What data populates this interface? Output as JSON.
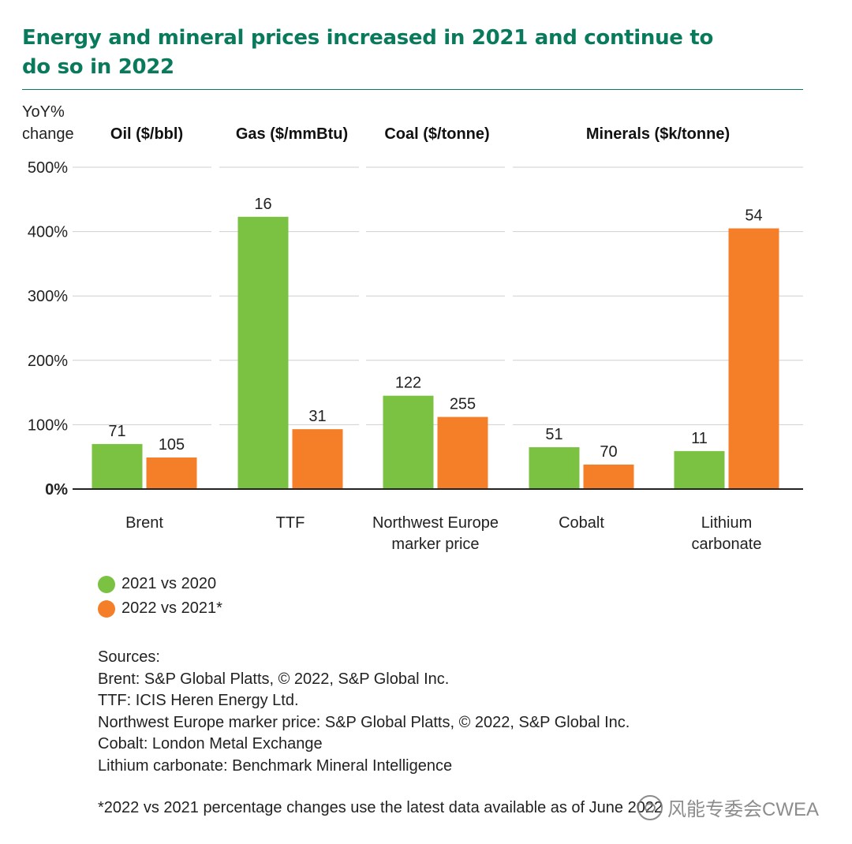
{
  "title": "Energy and mineral prices increased in 2021 and continue to do so in 2022",
  "colors": {
    "series1": "#7cc242",
    "series2": "#f57f29",
    "title": "#0a7a5c",
    "grid": "#cfcfcf",
    "axis": "#222222"
  },
  "chart_data": {
    "type": "bar",
    "ylabel": "YoY% change",
    "ylim": [
      0,
      500
    ],
    "yticks": [
      "0%",
      "100%",
      "200%",
      "300%",
      "400%",
      "500%"
    ],
    "groups": [
      "Oil ($/bbl)",
      "Gas ($/mmBtu)",
      "Coal ($/tonne)",
      "Minerals ($k/tonne)"
    ],
    "group_spans": [
      [
        0
      ],
      [
        1
      ],
      [
        2
      ],
      [
        3,
        4
      ]
    ],
    "categories": [
      "Brent",
      "TTF",
      "Northwest Europe marker price",
      "Cobalt",
      "Lithium carbonate"
    ],
    "series": [
      {
        "name": "2021 vs 2020",
        "values": [
          70,
          423,
          145,
          65,
          59
        ],
        "labels": [
          "71",
          "16",
          "122",
          "51",
          "11"
        ]
      },
      {
        "name": "2022 vs 2021*",
        "values": [
          49,
          93,
          112,
          38,
          405
        ],
        "labels": [
          "105",
          "31",
          "255",
          "70",
          "54"
        ]
      }
    ]
  },
  "legend": [
    "2021 vs 2020",
    "2022 vs 2021*"
  ],
  "sources": {
    "heading": "Sources:",
    "lines": [
      "Brent: S&P Global Platts, © 2022, S&P Global Inc.",
      "TTF: ICIS Heren Energy Ltd.",
      "Northwest Europe marker price: S&P Global Platts, © 2022, S&P Global Inc.",
      "Cobalt: London Metal Exchange",
      "Lithium carbonate: Benchmark Mineral Intelligence"
    ]
  },
  "footnote": "*2022 vs 2021 percentage changes use the latest data available as of June 2022",
  "watermark": "风能专委会CWEA"
}
